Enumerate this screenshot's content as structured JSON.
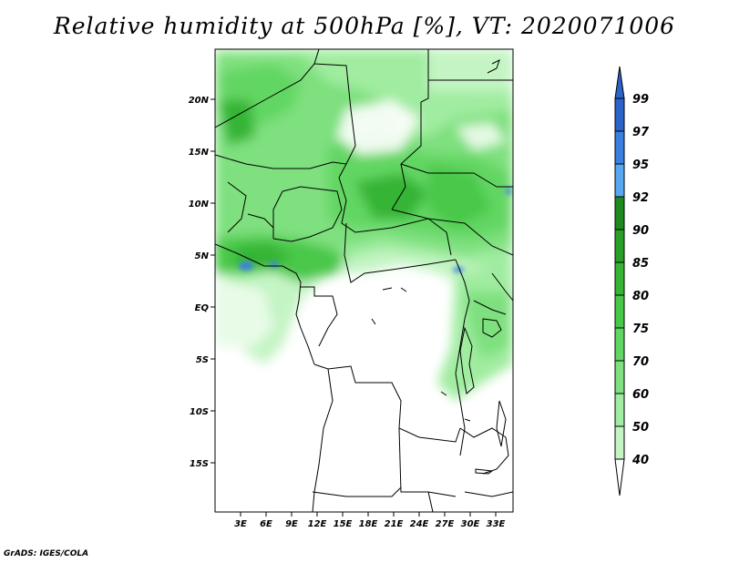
{
  "title": "Relative humidity at 500hPa [%], VT: 2020071006",
  "credit": "GrADS: IGES/COLA",
  "map": {
    "lon_range": [
      0,
      35
    ],
    "lat_range": [
      -20,
      25
    ],
    "lat_ticks": [
      "20N",
      "15N",
      "10N",
      "5N",
      "EQ",
      "5S",
      "10S",
      "15S"
    ],
    "lon_ticks": [
      "3E",
      "6E",
      "9E",
      "12E",
      "15E",
      "18E",
      "21E",
      "24E",
      "27E",
      "30E",
      "33E"
    ]
  },
  "colorbar": {
    "levels": [
      "99",
      "97",
      "95",
      "92",
      "90",
      "85",
      "80",
      "75",
      "70",
      "60",
      "50",
      "40"
    ],
    "colors": [
      "#2a64c8",
      "#3a80e0",
      "#58a8f0",
      "#1e8a1e",
      "#28a028",
      "#36b436",
      "#48c848",
      "#62d662",
      "#7ee07e",
      "#a0eca0",
      "#c4f4c4",
      "#e4fce4"
    ]
  }
}
